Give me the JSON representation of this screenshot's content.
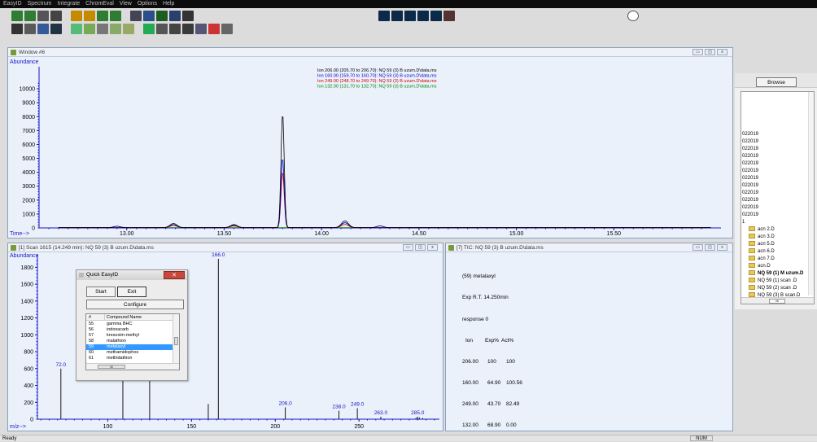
{
  "menu": [
    "EasyID",
    "Spectrum",
    "Integrate",
    "ChromEval",
    "View",
    "Options",
    "Help"
  ],
  "colors": {
    "ion206": "#000000",
    "ion160": "#0000c8",
    "ion249": "#d00000",
    "ion132": "#008800",
    "axis": "#1414c8",
    "bg": "#eaf1fb"
  },
  "toolbar": {
    "icons": [
      "spectrum-icon",
      "spectrum2-icon",
      "tic-icon",
      "print-icon",
      "overlay-icon",
      "overlay2-icon",
      "overlay3-icon",
      "integrate-icon",
      "calibrate-icon",
      "report-icon",
      "library-icon",
      "chart-icon",
      "eic-icon",
      "sim-icon",
      "stack-icon",
      "bar-icon",
      "chrom-icon",
      "peak-icon",
      "zoom-icon",
      "abundance-icon",
      "scan-icon",
      "scan2-icon",
      "scan3-icon",
      "stats-icon",
      "select-icon",
      "grid-icon",
      "merge-icon",
      "draw-icon",
      "file-icon",
      "bars-icon",
      "bars2-icon",
      "bars3-icon",
      "bars4-icon",
      "bars5-icon",
      "check-icon",
      "target-icon"
    ]
  },
  "window6": {
    "title": "Window #6",
    "ylabel": "Abundance",
    "xlabel": "Time-->"
  },
  "scanwin": {
    "title": "[1] Scan 1615 (14.249 min): NQ 59 (3) B uzum.D\\data.ms",
    "ylabel": "Abundance",
    "xlabel": "m/z-->"
  },
  "ticwin": {
    "title": "[7] TIC: NQ 59 (3) B uzum.D\\data.ms",
    "lines": [
      "(59) metalaxyl",
      "Exp R.T. 14.250min",
      "response 0"
    ],
    "table_header": [
      "Ion",
      "Exp%",
      "Act%"
    ],
    "table_rows": [
      [
        "206.00",
        "100",
        "100"
      ],
      [
        "160.00",
        "64.90",
        "100.56"
      ],
      [
        "249.00",
        "43.70",
        "82.49"
      ],
      [
        "132.00",
        "68.90",
        "0.00"
      ]
    ]
  },
  "quick": {
    "title": "Quick EasyID",
    "start": "Start",
    "exit": "Exit",
    "configure": "Configure",
    "header": [
      "#",
      "Compound Name"
    ],
    "rows": [
      [
        "55",
        "gamma BHC"
      ],
      [
        "56",
        "indoxacarb"
      ],
      [
        "57",
        "kresoxim-methyl"
      ],
      [
        "58",
        "malathion"
      ],
      [
        "59",
        "metalaxyl"
      ],
      [
        "60",
        "methamidophos"
      ],
      [
        "61",
        "methidathion"
      ]
    ],
    "selected": 4
  },
  "right": {
    "browse": "Browse",
    "dates": [
      "022019",
      "022019",
      "022019",
      "022019",
      "022019",
      "022019",
      "022019",
      "022019",
      "022019",
      "022019",
      "022019",
      "022019"
    ],
    "folders": [
      "acn 2.D",
      "acn 3.D",
      "acn 5.D",
      "acn 6.D",
      "acn 7.D",
      "acn.D",
      "NQ 59 (1) M uzum.D",
      "NQ 59 (1) scan .D",
      "NQ 59 (2) scan .D",
      "NQ 59 (3) B scan.D",
      "NQ 59 (3) B uzum.D"
    ],
    "bold": [
      6,
      10
    ],
    "first": "1"
  },
  "status": {
    "left": "Ready",
    "right": "NUM"
  },
  "chart_data": [
    {
      "type": "line",
      "title": "",
      "legend": [
        "Ion 206.00 (205.70 to 206.70): NQ 59 (3) B uzum.D\\data.ms",
        "Ion 160.00 (159.70 to 160.70): NQ 59 (3) B uzum.D\\data.ms",
        "Ion 249.00 (248.70 to 249.70): NQ 59 (3) B uzum.D\\data.ms",
        "Ion 132.00 (131.70 to 132.70): NQ 59 (3) B uzum.D\\data.ms"
      ],
      "xlabel": "Time-->",
      "ylabel": "Abundance",
      "xlim": [
        12.55,
        16.05
      ],
      "ylim": [
        0,
        11000
      ],
      "xticks": [
        "13.00",
        "13.50",
        "14.00",
        "14.50",
        "15.00",
        "15.50"
      ],
      "yticks": [
        "1000",
        "2000",
        "3000",
        "4000",
        "5000",
        "6000",
        "7000",
        "8000",
        "9000",
        "10000"
      ],
      "peak_time": 13.8,
      "series": [
        {
          "name": "Ion 206.00",
          "peak": 8200,
          "bumps": [
            [
              12.95,
              100
            ],
            [
              13.24,
              300
            ],
            [
              13.55,
              220
            ],
            [
              14.12,
              480
            ],
            [
              14.3,
              120
            ]
          ]
        },
        {
          "name": "Ion 160.00",
          "peak": 5000,
          "bumps": [
            [
              13.24,
              220
            ],
            [
              13.55,
              180
            ],
            [
              14.12,
              350
            ]
          ]
        },
        {
          "name": "Ion 249.00",
          "peak": 4000,
          "bumps": [
            [
              13.24,
              160
            ],
            [
              13.55,
              120
            ],
            [
              14.12,
              230
            ]
          ]
        },
        {
          "name": "Ion 132.00",
          "peak": 0,
          "bumps": []
        }
      ]
    },
    {
      "type": "bar",
      "title": "",
      "xlabel": "m/z-->",
      "ylabel": "Abundance",
      "xlim": [
        58,
        298
      ],
      "ylim": [
        0,
        1900
      ],
      "xticks": [
        "100",
        "150",
        "200",
        "250"
      ],
      "yticks": [
        "200",
        "400",
        "600",
        "800",
        "1000",
        "1200",
        "1400",
        "1600",
        "1800"
      ],
      "peaks": [
        [
          72,
          600
        ],
        [
          109,
          900
        ],
        [
          125,
          800
        ],
        [
          160,
          180
        ],
        [
          166,
          1900
        ],
        [
          206,
          140
        ],
        [
          238,
          100
        ],
        [
          249,
          130
        ],
        [
          263,
          30
        ],
        [
          285,
          30
        ]
      ],
      "labels": [
        [
          72,
          "72.0"
        ],
        [
          166,
          "166.0"
        ],
        [
          206,
          "206.0"
        ],
        [
          238,
          "238.0"
        ],
        [
          249,
          "249.0"
        ],
        [
          263,
          "263.0"
        ],
        [
          285,
          "285.0"
        ]
      ]
    }
  ]
}
